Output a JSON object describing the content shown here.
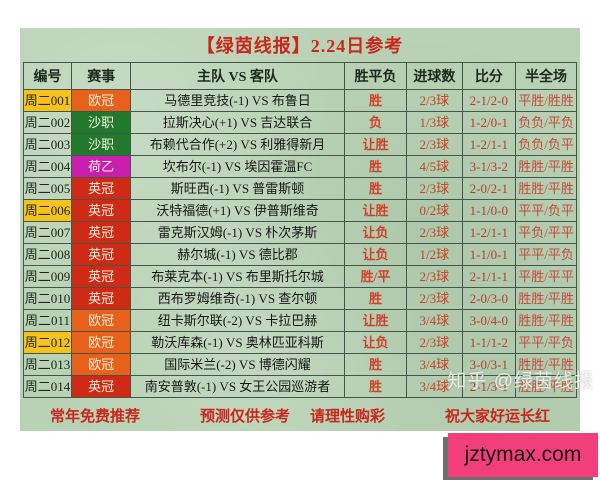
{
  "title": "【绿茵线报】2.24日参考",
  "columns": [
    "编号",
    "赛事",
    "主队 VS 客队",
    "胜平负",
    "进球数",
    "比分",
    "半全场"
  ],
  "rows": [
    {
      "id": "周二001",
      "league": "欧冠",
      "match": "马德里竞技(-1) VS 布鲁日",
      "pick": "胜",
      "goals": "2/3球",
      "score": "2-1/2-0",
      "half_full": "平胜/胜胜",
      "id_highlight": true
    },
    {
      "id": "周二002",
      "league": "沙职",
      "match": "拉斯决心(+1) VS 吉达联合",
      "pick": "负",
      "goals": "1/3球",
      "score": "1-2/0-1",
      "half_full": "负负/平负",
      "id_highlight": false
    },
    {
      "id": "周二003",
      "league": "沙职",
      "match": "布赖代合作(+2) VS 利雅得新月",
      "pick": "让胜",
      "goals": "2/3球",
      "score": "1-2/1-1",
      "half_full": "负负/负平",
      "id_highlight": false
    },
    {
      "id": "周二004",
      "league": "荷乙",
      "match": "坎布尔(-1) VS 埃因霍温FC",
      "pick": "胜",
      "goals": "4/5球",
      "score": "3-1/3-2",
      "half_full": "胜胜/平胜",
      "id_highlight": false
    },
    {
      "id": "周二005",
      "league": "英冠",
      "match": "斯旺西(-1) VS 普雷斯顿",
      "pick": "胜",
      "goals": "2/3球",
      "score": "2-0/2-1",
      "half_full": "胜胜/平胜",
      "id_highlight": false
    },
    {
      "id": "周二006",
      "league": "英冠",
      "match": "沃特福德(+1) VS 伊普斯维奇",
      "pick": "让胜",
      "goals": "0/2球",
      "score": "1-1/0-0",
      "half_full": "平平/负平",
      "id_highlight": true
    },
    {
      "id": "周二007",
      "league": "英冠",
      "match": "雷克斯汉姆(-1) VS 朴次茅斯",
      "pick": "让负",
      "goals": "2/3球",
      "score": "1-2/1-1",
      "half_full": "平负/平平",
      "id_highlight": false
    },
    {
      "id": "周二008",
      "league": "英冠",
      "match": "赫尔城(-1) VS 德比郡",
      "pick": "让负",
      "goals": "1/2球",
      "score": "1-1/0-1",
      "half_full": "平平/平负",
      "id_highlight": false
    },
    {
      "id": "周二009",
      "league": "英冠",
      "match": "布莱克本(-1) VS 布里斯托尔城",
      "pick": "胜/平",
      "goals": "2/3球",
      "score": "2-1/1-1",
      "half_full": "平胜/平平",
      "id_highlight": false
    },
    {
      "id": "周二010",
      "league": "英冠",
      "match": "西布罗姆维奇(-1) VS 查尔顿",
      "pick": "胜",
      "goals": "2/3球",
      "score": "2-0/3-0",
      "half_full": "胜胜/平胜",
      "id_highlight": false
    },
    {
      "id": "周二011",
      "league": "欧冠",
      "match": "纽卡斯尔联(-2) VS 卡拉巴赫",
      "pick": "让胜",
      "goals": "3/4球",
      "score": "3-0/4-0",
      "half_full": "胜胜/平胜",
      "id_highlight": false
    },
    {
      "id": "周二012",
      "league": "欧冠",
      "match": "勒沃库森(-1) VS 奥林匹亚科斯",
      "pick": "让负",
      "goals": "2/3球",
      "score": "1-1/1-2",
      "half_full": "平平/平负",
      "id_highlight": true
    },
    {
      "id": "周二013",
      "league": "欧冠",
      "match": "国际米兰(-2) VS 博德闪耀",
      "pick": "胜",
      "goals": "3/4球",
      "score": "3-0/3-1",
      "half_full": "胜胜/平胜",
      "id_highlight": false
    },
    {
      "id": "周二014",
      "league": "英冠",
      "match": "南安普敦(-1) VS 女王公园巡游者",
      "pick": "胜",
      "goals": "3/4球",
      "score": "2-1/3-1",
      "half_full": "胜胜/平胜",
      "id_highlight": false
    }
  ],
  "footer": {
    "items": [
      "常年免费推荐",
      "预测仅供参考",
      "请理性购彩",
      "祝大家好运长红"
    ]
  },
  "watermark": "知乎 @绿茵线报",
  "badge": "jztymax.com",
  "colors": {
    "paper_green": "#b9d2b5",
    "accent_red": "#c9271d",
    "value_red": "#c64a3a",
    "id_highlight_yellow": "#f5c31c",
    "badge_pink": "#f23f7b",
    "leagues": {
      "欧冠": "#e8611a",
      "沙职": "#20792c",
      "荷乙": "#ca1fae",
      "英冠": "#ce2a16"
    }
  }
}
